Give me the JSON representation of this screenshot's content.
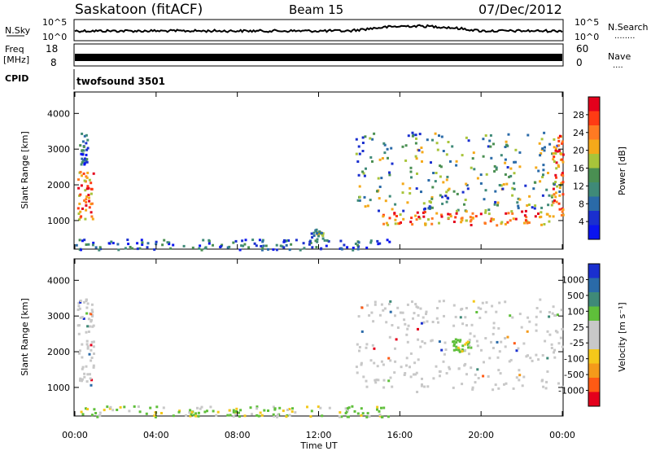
{
  "header": {
    "station": "Saskatoon (fitACF)",
    "beam": "Beam 15",
    "date": "07/Dec/2012"
  },
  "strips": {
    "nsky_label": "N.Sky",
    "nsearch_label": "N.Search",
    "nsearch_marker": "········",
    "nsky_ticks": [
      "10^5",
      "10^0"
    ],
    "nsearch_ticks": [
      "10^5",
      "10^0"
    ],
    "freq_label_1": "Freq",
    "freq_label_2": "[MHz]",
    "freq_ticks": [
      "18",
      "8"
    ],
    "nave_label": "Nave",
    "nave_marker": "····",
    "nave_ticks": [
      "60",
      "0"
    ],
    "cpid_label": "CPID",
    "cpid_text": "twofsound 3501"
  },
  "chart_data": [
    {
      "type": "heatmap",
      "panel": "power",
      "ylabel": "Slant Range [km]",
      "y_ticks": [
        "4000",
        "3000",
        "2000",
        "1000"
      ],
      "ylim": [
        200,
        4600
      ],
      "colorbar": {
        "label": "Power [dB]",
        "ticks": [
          "28",
          "24",
          "20",
          "16",
          "12",
          "8",
          "4"
        ],
        "colors": [
          "#e4001c",
          "#ff3b14",
          "#ff7a22",
          "#f4a91a",
          "#a8c43a",
          "#4a8f52",
          "#3f8a78",
          "#2a6aa8",
          "#1a2fcf",
          "#0a14f0"
        ]
      },
      "regions": [
        {
          "t0": 0.1,
          "t1": 0.9,
          "r0": 1000,
          "r1": 2400,
          "level": "high"
        },
        {
          "t0": 0.2,
          "t1": 0.6,
          "r0": 2600,
          "r1": 3500,
          "level": "low"
        },
        {
          "t0": 0.0,
          "t1": 15.5,
          "r0": 200,
          "r1": 500,
          "level": "low"
        },
        {
          "t0": 11.6,
          "t1": 12.2,
          "r0": 500,
          "r1": 800,
          "level": "mid"
        },
        {
          "t0": 13.8,
          "t1": 24.0,
          "r0": 1300,
          "r1": 3500,
          "level": "mid"
        },
        {
          "t0": 15.0,
          "t1": 23.4,
          "r0": 900,
          "r1": 1300,
          "level": "high"
        },
        {
          "t0": 23.5,
          "t1": 24.0,
          "r0": 1000,
          "r1": 3400,
          "level": "high"
        }
      ]
    },
    {
      "type": "heatmap",
      "panel": "velocity",
      "ylabel": "Slant Range [km]",
      "y_ticks": [
        "4000",
        "3000",
        "2000",
        "1000"
      ],
      "ylim": [
        200,
        4600
      ],
      "colorbar": {
        "label": "Velocity [m s⁻¹]",
        "ticks": [
          "1000",
          "500",
          "100",
          "25",
          "-25",
          "-100",
          "-500",
          "-1000"
        ],
        "colors": [
          "#1a2fcf",
          "#2a6aa8",
          "#3f8a78",
          "#5fbf3a",
          "#c8c8c8",
          "#c8c8c8",
          "#f4c81a",
          "#f49a1a",
          "#ff5a14",
          "#e4001c"
        ]
      },
      "regions": [
        {
          "t0": 0.1,
          "t1": 0.9,
          "r0": 1000,
          "r1": 3500,
          "level": "grey"
        },
        {
          "t0": 0.0,
          "t1": 15.5,
          "r0": 200,
          "r1": 500,
          "level": "green"
        },
        {
          "t0": 13.8,
          "t1": 24.0,
          "r0": 900,
          "r1": 3500,
          "level": "grey"
        },
        {
          "t0": 18.5,
          "t1": 19.5,
          "r0": 2000,
          "r1": 2400,
          "level": "green"
        }
      ]
    }
  ],
  "x_axis": {
    "ticks": [
      "00:00",
      "04:00",
      "08:00",
      "12:00",
      "16:00",
      "20:00",
      "00:00"
    ],
    "label": "Time UT"
  }
}
